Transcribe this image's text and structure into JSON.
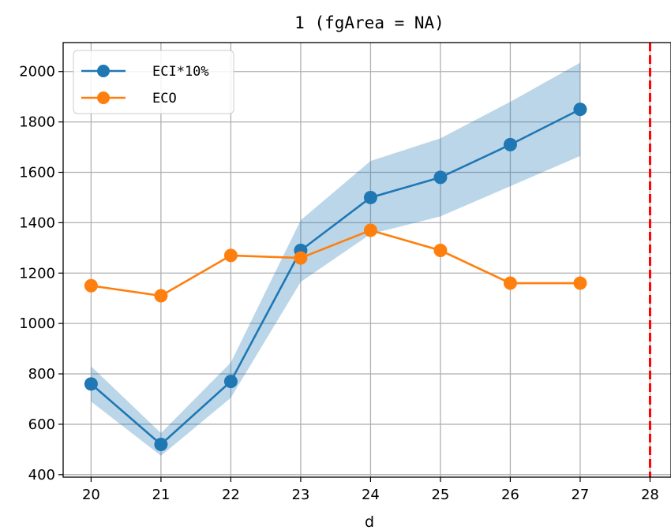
{
  "chart_data": {
    "type": "line",
    "title": "1 (fgArea = NA)",
    "xlabel": "d",
    "ylabel": "",
    "x": [
      20,
      21,
      22,
      23,
      24,
      25,
      26,
      27
    ],
    "x_ticks": [
      20,
      21,
      22,
      23,
      24,
      25,
      26,
      27,
      28
    ],
    "xlim": [
      19.6,
      28.3
    ],
    "ylim": [
      390,
      2115
    ],
    "y_ticks": [
      400,
      600,
      800,
      1000,
      1200,
      1400,
      1600,
      1800,
      2000
    ],
    "grid": true,
    "legend_position": "top-left",
    "series": [
      {
        "name": "ECI*10%",
        "color": "#1f77b4",
        "values": [
          760,
          520,
          770,
          1290,
          1500,
          1580,
          1710,
          1850
        ],
        "band_lower": [
          690,
          475,
          705,
          1165,
          1355,
          1425,
          1545,
          1665
        ],
        "band_upper": [
          830,
          565,
          845,
          1410,
          1645,
          1735,
          1880,
          2035
        ],
        "band_color": "#1f77b4"
      },
      {
        "name": "ECO",
        "color": "#ff7f0e",
        "values": [
          1150,
          1110,
          1270,
          1260,
          1370,
          1290,
          1160,
          1160
        ]
      }
    ],
    "vline": {
      "x": 28,
      "color": "#ff0000",
      "style": "dashed"
    }
  }
}
